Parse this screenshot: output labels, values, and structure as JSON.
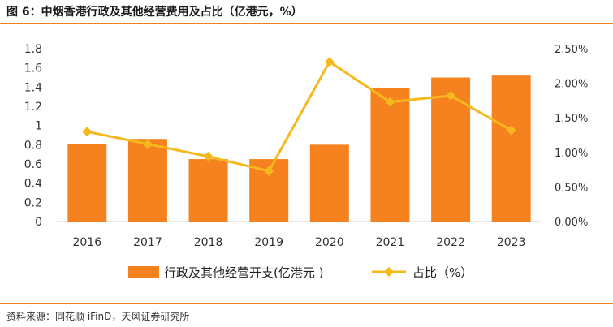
{
  "figure_title": "图 6：中烟香港行政及其他经营费用及占比（亿港元，%）",
  "source": "资料来源：同花顺 iFinD，天风证券研究所",
  "colors": {
    "bar": "#f5821f",
    "line": "#f5b91e",
    "rule": "#e8801e"
  },
  "chart_data": {
    "type": "bar",
    "categories": [
      "2016",
      "2017",
      "2018",
      "2019",
      "2020",
      "2021",
      "2022",
      "2023"
    ],
    "series": [
      {
        "name": "行政及其他经营开支(亿港元 )",
        "type": "bar",
        "axis": "left",
        "values": [
          0.81,
          0.86,
          0.65,
          0.65,
          0.8,
          1.39,
          1.5,
          1.52
        ]
      },
      {
        "name": "占比（%）",
        "type": "line",
        "axis": "right",
        "values": [
          1.3,
          1.12,
          0.94,
          0.73,
          2.31,
          1.73,
          1.82,
          1.32
        ]
      }
    ],
    "ylim": [
      0,
      1.8
    ],
    "y_ticks": [
      "0",
      "0.2",
      "0.4",
      "0.6",
      "0.8",
      "1",
      "1.2",
      "1.4",
      "1.6",
      "1.8"
    ],
    "y2lim": [
      0,
      2.5
    ],
    "y2_ticks": [
      "0.00%",
      "0.50%",
      "1.00%",
      "1.50%",
      "2.00%",
      "2.50%"
    ],
    "grid": false,
    "legend_position": "bottom"
  }
}
